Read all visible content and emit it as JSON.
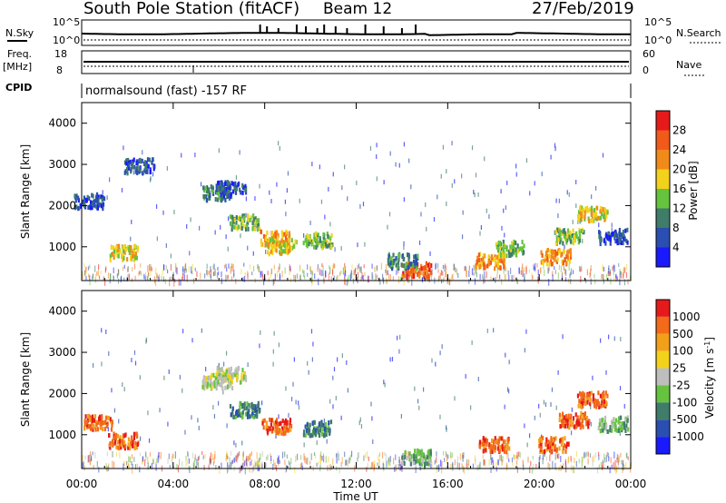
{
  "header": {
    "station": "South Pole Station (fitACF)",
    "beam": "Beam 12",
    "date": "27/Feb/2019"
  },
  "top_panels": {
    "nsky_label": "N.Sky",
    "nsky_ticks": [
      "10^5",
      "10^0"
    ],
    "nsearch_label": "N.Search",
    "nsearch_ticks": [
      "10^5",
      "10^0"
    ],
    "freq_label_1": "Freq.",
    "freq_label_2": "[MHz]",
    "freq_ticks": [
      "18",
      "8"
    ],
    "nave_label": "Nave",
    "nave_ticks": [
      "60",
      "0"
    ],
    "cpid_label": "CPID",
    "cpid_text": "normalsound (fast) -157 RF"
  },
  "chart_data": [
    {
      "type": "heatmap",
      "panel": "power",
      "xlabel": "",
      "ylabel": "Slant Range [km]",
      "xlim": [
        "00:00",
        "24:00"
      ],
      "ylim": [
        180,
        4500
      ],
      "yticks": [
        1000,
        2000,
        3000,
        4000
      ],
      "colorbar_label": "Power [dB]",
      "colorbar_ticks": [
        "4",
        "8",
        "12",
        "16",
        "20",
        "24",
        "28"
      ],
      "colors": [
        "#1a1aff",
        "#2a4fb0",
        "#3f7c6a",
        "#66c33e",
        "#f2d21b",
        "#f28a1a",
        "#f25a1a",
        "#e61a1a"
      ],
      "scatter_patches": [
        {
          "t": 1.8,
          "r": 900,
          "v": 4
        },
        {
          "t": 0.3,
          "r": 2150,
          "v": 1
        },
        {
          "t": 2.5,
          "r": 3000,
          "v": 1
        },
        {
          "t": 5.9,
          "r": 2350,
          "v": 2
        },
        {
          "t": 6.5,
          "r": 2450,
          "v": 1
        },
        {
          "t": 7.1,
          "r": 1650,
          "v": 3
        },
        {
          "t": 8.4,
          "r": 1250,
          "v": 5
        },
        {
          "t": 8.7,
          "r": 1050,
          "v": 4
        },
        {
          "t": 10.3,
          "r": 1200,
          "v": 3
        },
        {
          "t": 14.6,
          "r": 480,
          "v": 6
        },
        {
          "t": 14.0,
          "r": 700,
          "v": 2
        },
        {
          "t": 17.8,
          "r": 700,
          "v": 5
        },
        {
          "t": 18.7,
          "r": 1000,
          "v": 3
        },
        {
          "t": 20.7,
          "r": 800,
          "v": 5
        },
        {
          "t": 21.3,
          "r": 1300,
          "v": 3
        },
        {
          "t": 22.3,
          "r": 1850,
          "v": 4
        },
        {
          "t": 23.2,
          "r": 1300,
          "v": 1
        }
      ]
    },
    {
      "type": "heatmap",
      "panel": "velocity",
      "xlabel": "Time UT",
      "ylabel": "Slant Range [km]",
      "xlim": [
        "00:00",
        "24:00"
      ],
      "ylim": [
        180,
        4500
      ],
      "yticks": [
        1000,
        2000,
        3000,
        4000
      ],
      "xticks": [
        "00:00",
        "04:00",
        "08:00",
        "12:00",
        "16:00",
        "20:00",
        "00:00"
      ],
      "colorbar_label": "Velocity [m s^-1]",
      "colorbar_ticks": [
        "1000",
        "500",
        "100",
        "25",
        "-25",
        "-100",
        "-500",
        "-1000"
      ],
      "colors": [
        "#1a1aff",
        "#2a4fb0",
        "#3f7c6a",
        "#66c33e",
        "#bebebe",
        "#f2d21b",
        "#f2a01a",
        "#f26a1a",
        "#e61a1a"
      ],
      "scatter_patches": [
        {
          "t": 1.8,
          "r": 900,
          "v": 7
        },
        {
          "t": 0.7,
          "r": 1350,
          "v": 7
        },
        {
          "t": 5.9,
          "r": 2350,
          "v": 4
        },
        {
          "t": 6.5,
          "r": 2500,
          "v": 4
        },
        {
          "t": 7.1,
          "r": 1650,
          "v": 2
        },
        {
          "t": 8.5,
          "r": 1250,
          "v": 7
        },
        {
          "t": 10.3,
          "r": 1200,
          "v": 2
        },
        {
          "t": 14.6,
          "r": 500,
          "v": 3
        },
        {
          "t": 18.0,
          "r": 800,
          "v": 7
        },
        {
          "t": 20.6,
          "r": 800,
          "v": 7
        },
        {
          "t": 21.5,
          "r": 1400,
          "v": 7
        },
        {
          "t": 22.3,
          "r": 1900,
          "v": 7
        },
        {
          "t": 23.2,
          "r": 1300,
          "v": 3
        }
      ]
    }
  ]
}
